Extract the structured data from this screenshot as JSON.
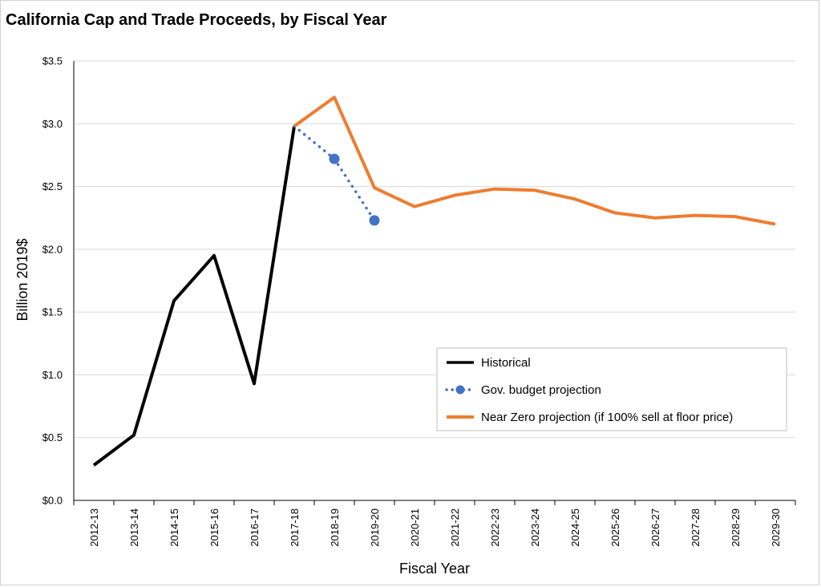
{
  "chart_data": {
    "type": "line",
    "title": "California Cap and Trade Proceeds, by Fiscal Year",
    "xlabel": "Fiscal Year",
    "ylabel": "Billion 2019$",
    "categories": [
      "2012-13",
      "2013-14",
      "2014-15",
      "2015-16",
      "2016-17",
      "2017-18",
      "2018-19",
      "2019-20",
      "2020-21",
      "2021-22",
      "2022-23",
      "2023-24",
      "2024-25",
      "2025-26",
      "2026-27",
      "2027-28",
      "2028-29",
      "2029-30"
    ],
    "y_ticks": [
      "$0.0",
      "$0.5",
      "$1.0",
      "$1.5",
      "$2.0",
      "$2.5",
      "$3.0",
      "$3.5"
    ],
    "ylim": [
      0,
      3.5
    ],
    "grid": true,
    "legend_position": "lower-right",
    "series": [
      {
        "name": "Historical",
        "color": "#000000",
        "style": "solid",
        "values": [
          0.28,
          0.52,
          1.59,
          1.95,
          0.93,
          2.98,
          null,
          null,
          null,
          null,
          null,
          null,
          null,
          null,
          null,
          null,
          null,
          null
        ]
      },
      {
        "name": "Gov. budget projection",
        "color": "#4472C4",
        "style": "dotted-with-markers",
        "values": [
          null,
          null,
          null,
          null,
          null,
          2.98,
          2.72,
          2.23,
          null,
          null,
          null,
          null,
          null,
          null,
          null,
          null,
          null,
          null
        ]
      },
      {
        "name": "Near Zero projection (if 100% sell at floor price)",
        "color": "#ED7D31",
        "style": "solid",
        "values": [
          null,
          null,
          null,
          null,
          null,
          2.98,
          3.21,
          2.49,
          2.34,
          2.43,
          2.48,
          2.47,
          2.4,
          2.29,
          2.25,
          2.27,
          2.26,
          2.2
        ]
      }
    ]
  }
}
